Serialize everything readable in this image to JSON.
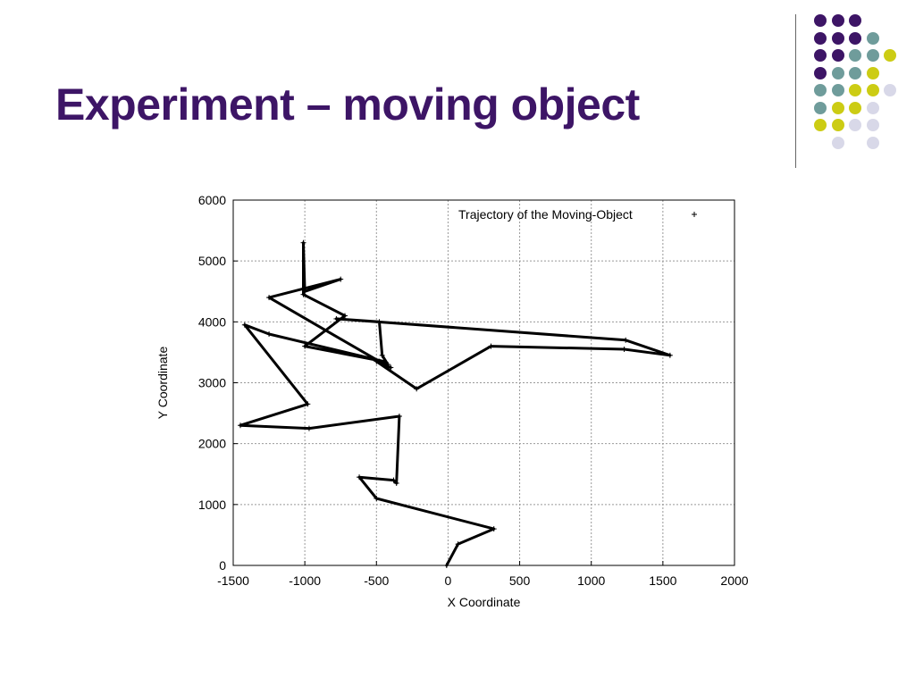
{
  "slide": {
    "title": "Experiment – moving object"
  },
  "decoration": {
    "colors": {
      "purple": "#3d1566",
      "teal": "#6f9c9b",
      "yellow": "#cccc14",
      "lavender": "#d8d8e8",
      "title": "#3d1566"
    },
    "dot_grid": [
      [
        "purple",
        "purple",
        "purple",
        null,
        null
      ],
      [
        "purple",
        "purple",
        "purple",
        "teal",
        null
      ],
      [
        "purple",
        "purple",
        "teal",
        "teal",
        "yellow"
      ],
      [
        "purple",
        "teal",
        "teal",
        "yellow",
        null
      ],
      [
        "teal",
        "teal",
        "yellow",
        "yellow",
        "lavender"
      ],
      [
        "teal",
        "yellow",
        "yellow",
        "lavender",
        null
      ],
      [
        "yellow",
        "yellow",
        "lavender",
        "lavender",
        null
      ],
      [
        null,
        "lavender",
        null,
        "lavender",
        null
      ]
    ]
  },
  "chart_data": {
    "type": "line",
    "title": "",
    "xlabel": "X Coordinate",
    "ylabel": "Y Coordinate",
    "xlim": [
      -1500,
      2000
    ],
    "ylim": [
      0,
      6000
    ],
    "xticks": [
      -1500,
      -1000,
      -500,
      0,
      500,
      1000,
      1500,
      2000
    ],
    "yticks": [
      0,
      1000,
      2000,
      3000,
      4000,
      5000,
      6000
    ],
    "grid": true,
    "legend_position": "top-right",
    "series": [
      {
        "name": "Trajectory of the Moving-Object",
        "marker": "+",
        "color": "#000000",
        "x": [
          -10,
          70,
          320,
          -500,
          -620,
          -380,
          -360,
          -340,
          -970,
          -1450,
          -980,
          -1420,
          -1250,
          -450,
          -1000,
          -720,
          -1010,
          -1010,
          -1000,
          -750,
          -1250,
          -480,
          -420,
          -460,
          -480,
          -780,
          1240,
          1550,
          1230,
          300,
          -220,
          -500,
          -400
        ],
        "y": [
          0,
          350,
          600,
          1100,
          1450,
          1400,
          1350,
          2450,
          2250,
          2300,
          2650,
          3950,
          3800,
          3350,
          3600,
          4100,
          4450,
          5300,
          4500,
          4700,
          4400,
          3350,
          3300,
          3450,
          4000,
          4050,
          3700,
          3450,
          3550,
          3600,
          2900,
          3350,
          3250
        ]
      }
    ]
  }
}
